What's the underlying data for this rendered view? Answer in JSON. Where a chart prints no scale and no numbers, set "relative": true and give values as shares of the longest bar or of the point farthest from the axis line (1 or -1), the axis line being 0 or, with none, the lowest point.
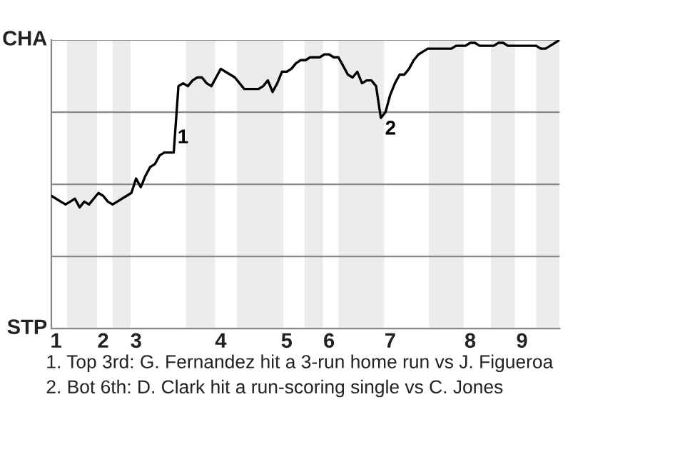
{
  "chart_data": {
    "type": "line",
    "relative": true,
    "categories": [
      null,
      "1",
      null,
      null,
      null,
      null,
      null,
      null,
      null,
      null,
      null,
      "2",
      null,
      null,
      null,
      null,
      null,
      null,
      "3",
      null,
      null,
      null,
      null,
      null,
      null,
      null,
      null,
      null,
      null,
      null,
      null,
      null,
      null,
      null,
      null,
      null,
      "4",
      null,
      null,
      null,
      null,
      null,
      null,
      null,
      null,
      null,
      null,
      null,
      null,
      null,
      "5",
      null,
      null,
      null,
      null,
      null,
      null,
      null,
      null,
      "6",
      null,
      null,
      null,
      null,
      null,
      null,
      null,
      null,
      null,
      null,
      null,
      null,
      "7",
      null,
      null,
      null,
      null,
      null,
      null,
      null,
      null,
      null,
      null,
      null,
      null,
      null,
      null,
      null,
      null,
      "8",
      null,
      null,
      null,
      null,
      null,
      null,
      null,
      null,
      null,
      null,
      "9",
      null,
      null,
      null,
      null,
      null,
      null,
      null,
      null
    ],
    "series": [
      {
        "color": "#000000",
        "values": [
          0.46,
          0.45,
          0.44,
          0.43,
          0.44,
          0.45,
          0.42,
          0.44,
          0.43,
          0.45,
          0.47,
          0.46,
          0.44,
          0.43,
          0.44,
          0.45,
          0.46,
          0.47,
          0.52,
          0.49,
          0.53,
          0.56,
          0.57,
          0.6,
          0.61,
          0.61,
          0.61,
          0.84,
          0.85,
          0.84,
          0.86,
          0.87,
          0.87,
          0.85,
          0.84,
          0.87,
          0.9,
          0.89,
          0.88,
          0.87,
          0.85,
          0.83,
          0.83,
          0.83,
          0.83,
          0.84,
          0.86,
          0.82,
          0.85,
          0.89,
          0.89,
          0.9,
          0.92,
          0.93,
          0.93,
          0.94,
          0.94,
          0.94,
          0.95,
          0.95,
          0.94,
          0.94,
          0.91,
          0.88,
          0.87,
          0.89,
          0.85,
          0.86,
          0.86,
          0.84,
          0.73,
          0.75,
          0.81,
          0.85,
          0.88,
          0.88,
          0.9,
          0.93,
          0.95,
          0.96,
          0.97,
          0.97,
          0.97,
          0.97,
          0.97,
          0.97,
          0.98,
          0.98,
          0.98,
          0.99,
          0.99,
          0.98,
          0.98,
          0.98,
          0.98,
          0.99,
          0.99,
          0.98,
          0.98,
          0.98,
          0.98,
          0.98,
          0.98,
          0.98,
          0.97,
          0.97,
          0.98,
          0.99,
          1.0
        ]
      }
    ],
    "marker": "none",
    "line_style": "solid",
    "ref_lines": [
      {
        "axis": "y",
        "value": 0.25,
        "color": "#888888"
      },
      {
        "axis": "y",
        "value": 0.5,
        "color": "#888888"
      },
      {
        "axis": "y",
        "value": 0.75,
        "color": "#888888"
      },
      {
        "axis": "y",
        "value": 1.0,
        "color": "#888888"
      }
    ],
    "annotations": [
      "CHA",
      "STP",
      "1",
      "2",
      "1. Top 3rd: G. Fernandez hit a 3-run home run vs J. Figueroa",
      "2. Bot 6th: D. Clark hit a run-scoring single vs C. Jones"
    ]
  }
}
